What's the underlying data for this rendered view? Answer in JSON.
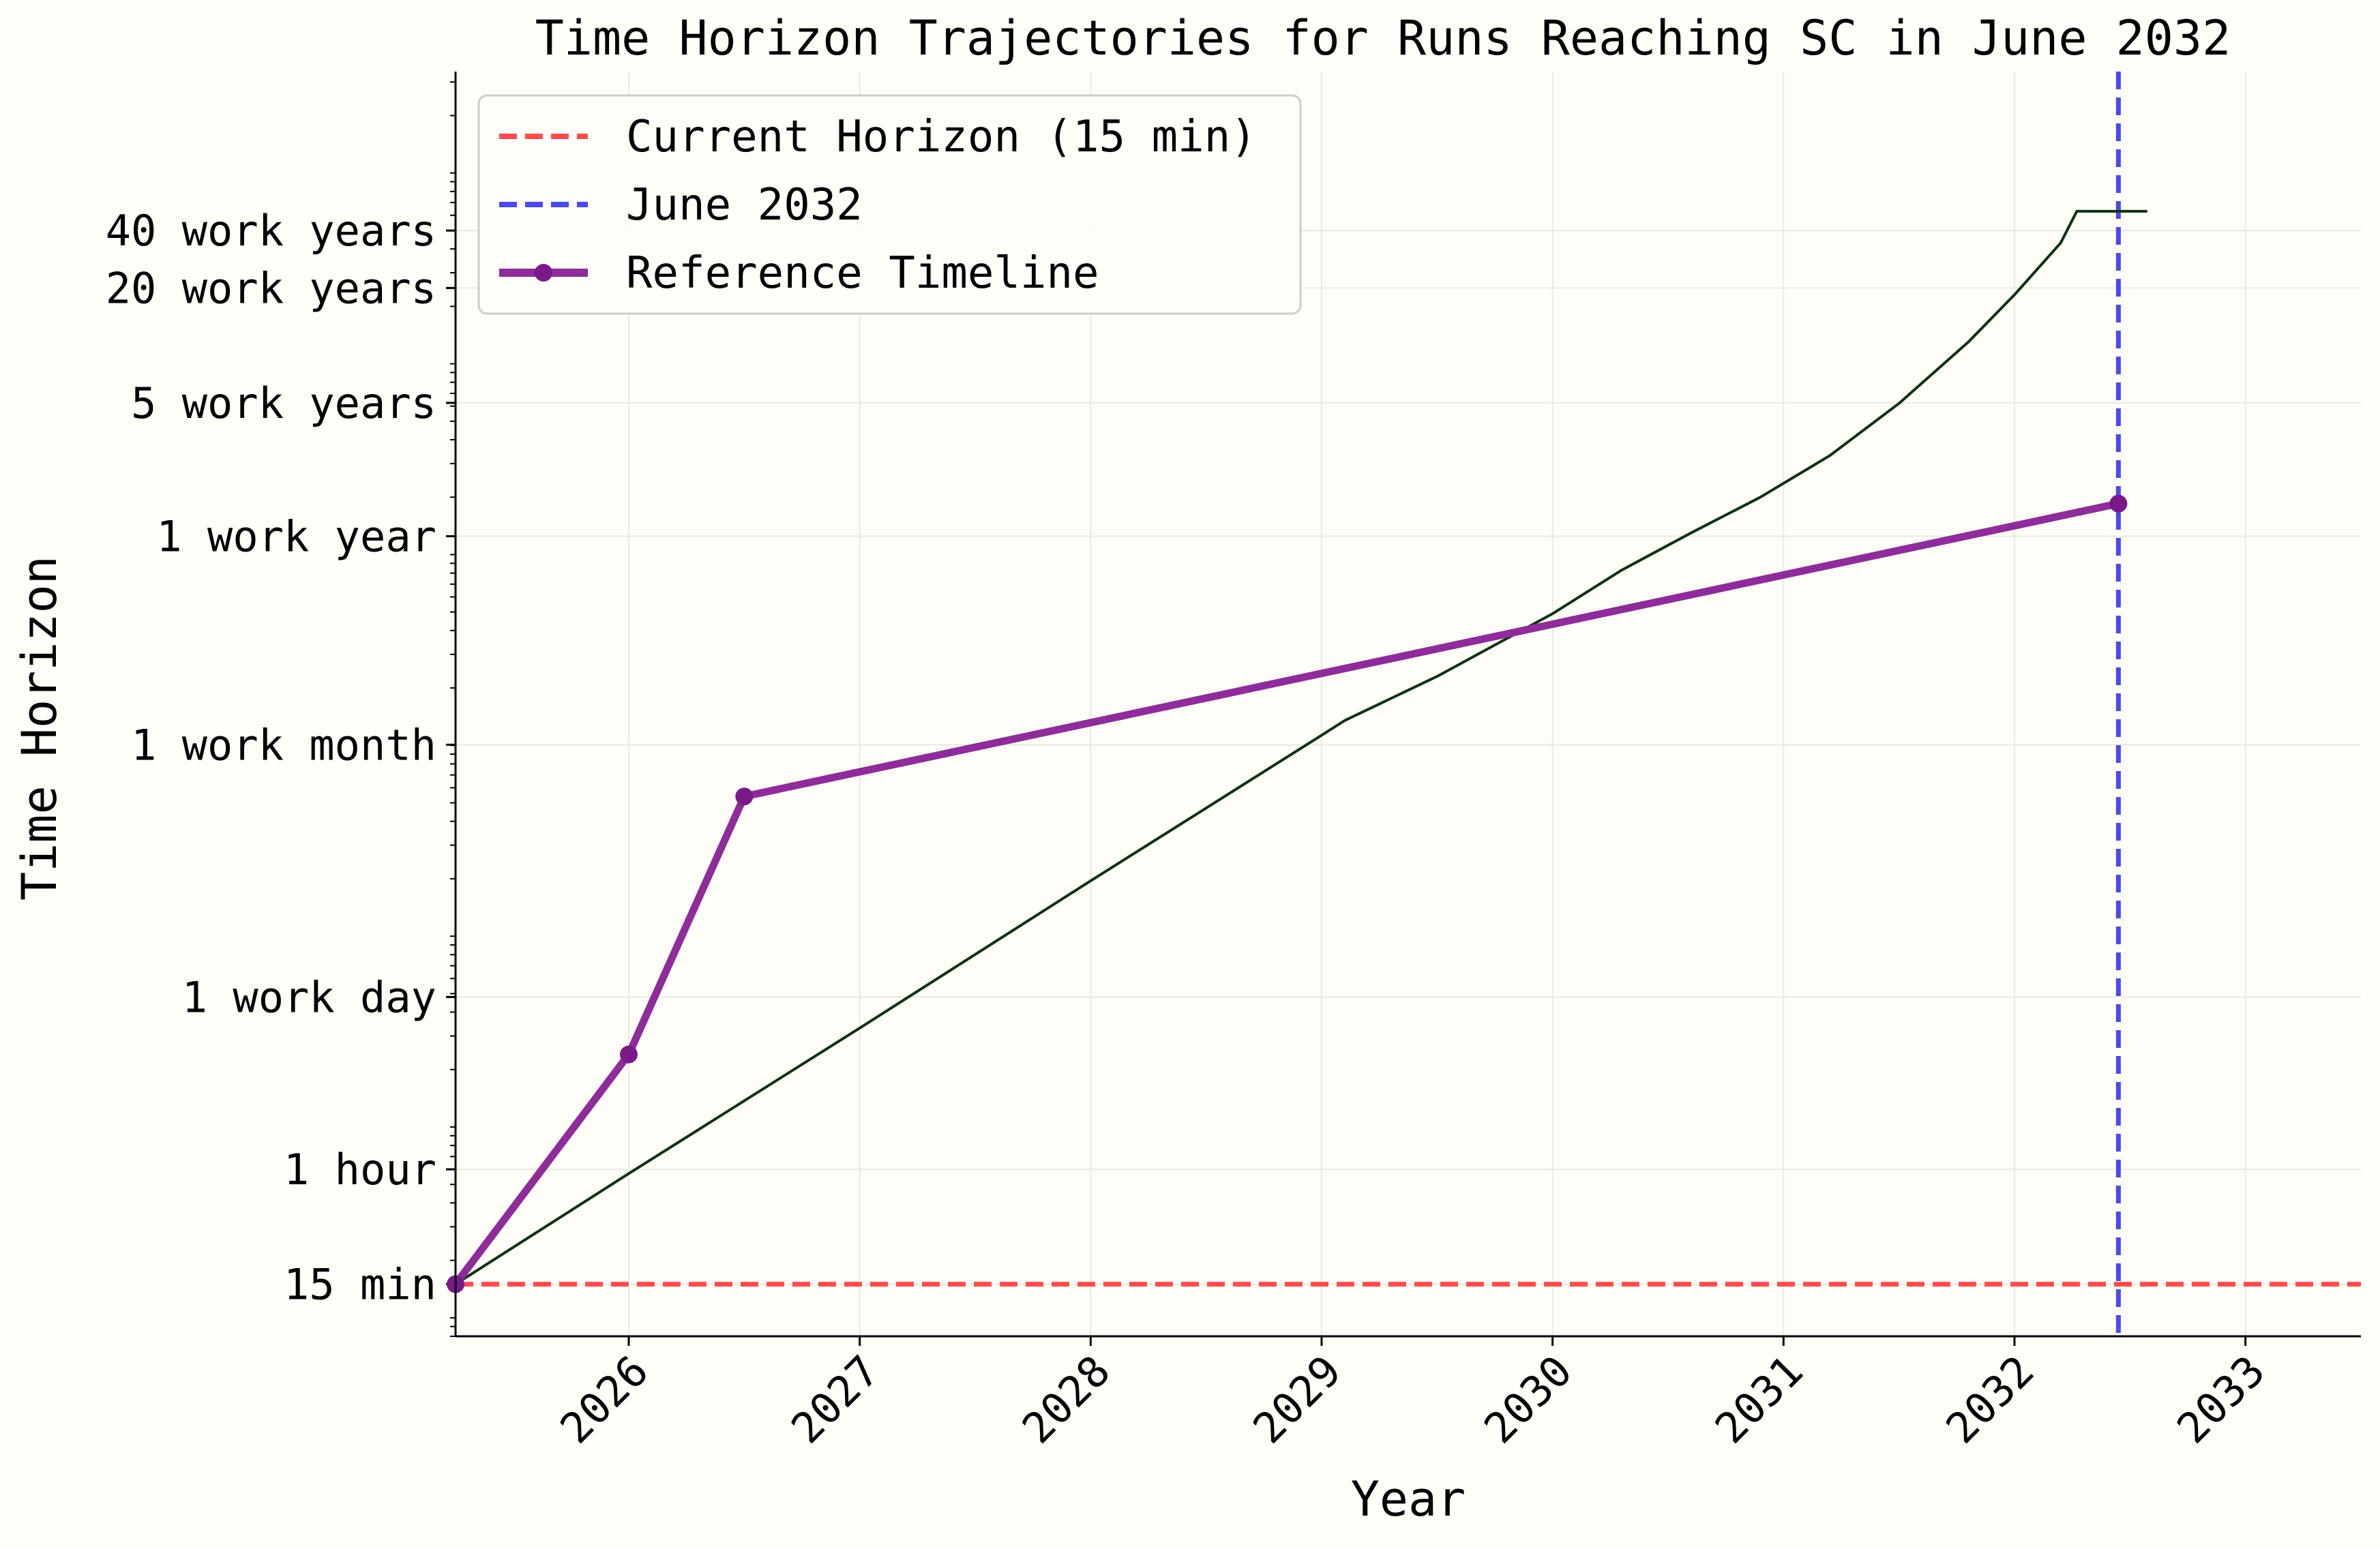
{
  "chart_data": {
    "type": "line",
    "title": "Time Horizon Trajectories for Runs Reaching SC in June 2032",
    "xlabel": "Year",
    "ylabel": "Time Horizon",
    "x_scale": "linear",
    "y_scale": "log",
    "y_unit": "minutes",
    "xlim": [
      2025.25,
      2033.5
    ],
    "ylim": [
      8.0,
      34000000.0
    ],
    "x_ticks": [
      {
        "value": 2026,
        "label": "2026"
      },
      {
        "value": 2027,
        "label": "2027"
      },
      {
        "value": 2028,
        "label": "2028"
      },
      {
        "value": 2029,
        "label": "2029"
      },
      {
        "value": 2030,
        "label": "2030"
      },
      {
        "value": 2031,
        "label": "2031"
      },
      {
        "value": 2032,
        "label": "2032"
      },
      {
        "value": 2033,
        "label": "2033"
      }
    ],
    "y_ticks": [
      {
        "value": 15,
        "label": "15 min"
      },
      {
        "value": 60,
        "label": "1 hour"
      },
      {
        "value": 480,
        "label": "1 work day"
      },
      {
        "value": 10080,
        "label": "1 work month"
      },
      {
        "value": 124800,
        "label": "1 work year"
      },
      {
        "value": 624000,
        "label": "5 work years"
      },
      {
        "value": 2496000,
        "label": "20 work years"
      },
      {
        "value": 4992000,
        "label": "40 work years"
      }
    ],
    "grid": true,
    "legend_position": "top-left",
    "series": [
      {
        "name": "Current Horizon (15 min)",
        "kind": "hline",
        "style": "dashed",
        "color": "#ff4d4d",
        "y": 15
      },
      {
        "name": "June 2032",
        "kind": "vline",
        "style": "dashed",
        "color": "#4a4aee",
        "x": 2032.45
      },
      {
        "name": "Reference Timeline",
        "kind": "line-markers",
        "style": "solid",
        "color": "#8e2c9a",
        "marker_color": "#7a1a8a",
        "x": [
          2025.25,
          2026.0,
          2026.5,
          2032.45
        ],
        "y": [
          15,
          240,
          5400,
          185000
        ]
      },
      {
        "kind": "line",
        "style": "solid",
        "color": "#0d3312",
        "x": [
          2025.25,
          2026.0,
          2027.0,
          2028.0,
          2029.0,
          2029.1,
          2029.5,
          2030.0,
          2030.3,
          2030.6,
          2030.9,
          2031.2,
          2031.5,
          2031.8,
          2032.0,
          2032.2,
          2032.27,
          2032.57
        ],
        "y": [
          15,
          57,
          330,
          1950,
          11300,
          13500,
          23000,
          49000,
          83000,
          130000,
          200000,
          330000,
          620000,
          1300000,
          2300000,
          4300000,
          6300000,
          6300000
        ]
      }
    ]
  },
  "colors": {
    "background": "#fffdf7",
    "grid": "#e9e9e4",
    "axis": "#000000"
  }
}
